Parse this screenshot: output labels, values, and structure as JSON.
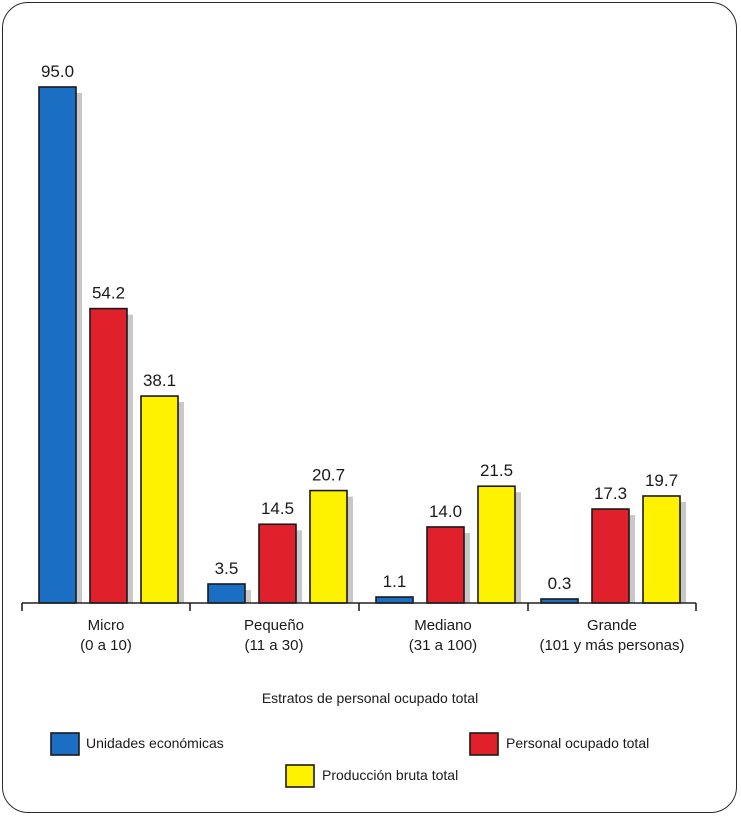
{
  "chart_data": {
    "type": "bar",
    "title": "",
    "xlabel": "Estratos de personal ocupado total",
    "ylabel": "",
    "ylim": [
      0,
      100
    ],
    "grid": false,
    "legend_placement": "bottom",
    "categories": [
      [
        "Micro",
        "(0 a 10)"
      ],
      [
        "Pequeño",
        "(11 a 30)"
      ],
      [
        "Mediano",
        "(31 a 100)"
      ],
      [
        "Grande",
        "(101 y más personas)"
      ]
    ],
    "series": [
      {
        "name": "Unidades económicas",
        "color": "#1a6fc4",
        "values": [
          95.0,
          3.5,
          1.1,
          0.3
        ]
      },
      {
        "name": "Personal ocupado total",
        "color": "#e0202a",
        "values": [
          54.2,
          14.5,
          14.0,
          17.3
        ]
      },
      {
        "name": "Producción bruta total",
        "color": "#fff200",
        "values": [
          38.1,
          20.7,
          21.5,
          19.7
        ]
      }
    ],
    "value_labels": [
      [
        "95.0",
        "54.2",
        "38.1"
      ],
      [
        "3.5",
        "14.5",
        "20.7"
      ],
      [
        "1.1",
        "14.0",
        "21.5"
      ],
      [
        "0.3",
        "17.3",
        "19.7"
      ]
    ]
  }
}
